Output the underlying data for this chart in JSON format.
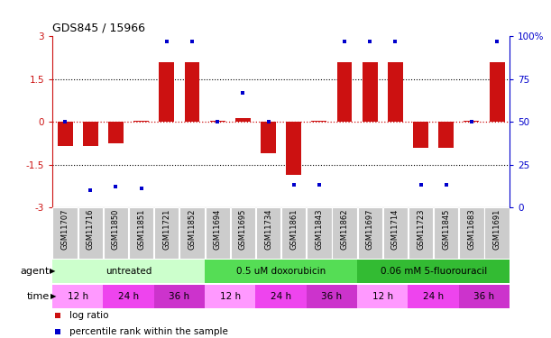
{
  "title": "GDS845 / 15966",
  "samples": [
    "GSM11707",
    "GSM11716",
    "GSM11850",
    "GSM11851",
    "GSM11721",
    "GSM11852",
    "GSM11694",
    "GSM11695",
    "GSM11734",
    "GSM11861",
    "GSM11843",
    "GSM11862",
    "GSM11697",
    "GSM11714",
    "GSM11723",
    "GSM11845",
    "GSM11683",
    "GSM11691"
  ],
  "log_ratios": [
    -0.85,
    -0.85,
    -0.75,
    0.02,
    2.1,
    2.1,
    0.02,
    0.12,
    -1.1,
    -1.85,
    0.02,
    2.1,
    2.1,
    2.1,
    -0.9,
    -0.9,
    0.02,
    2.1
  ],
  "percentile_ranks": [
    50,
    10,
    12,
    11,
    97,
    97,
    50,
    67,
    50,
    13,
    13,
    97,
    97,
    97,
    13,
    13,
    50,
    97
  ],
  "bar_color": "#cc1111",
  "dot_color": "#0000cc",
  "ylim_left": [
    -3.0,
    3.0
  ],
  "ylim_right": [
    0,
    100
  ],
  "yticks_left": [
    -3.0,
    -1.5,
    0.0,
    1.5,
    3.0
  ],
  "yticks_left_labels": [
    "-3",
    "-1.5",
    "0",
    "1.5",
    "3"
  ],
  "yticks_right": [
    0,
    25,
    50,
    75,
    100
  ],
  "yticks_right_labels": [
    "0",
    "25",
    "50",
    "75",
    "100%"
  ],
  "agent_groups": [
    {
      "label": "untreated",
      "start": 0,
      "end": 6,
      "color": "#ccffcc"
    },
    {
      "label": "0.5 uM doxorubicin",
      "start": 6,
      "end": 12,
      "color": "#55dd55"
    },
    {
      "label": "0.06 mM 5-fluorouracil",
      "start": 12,
      "end": 18,
      "color": "#33bb33"
    }
  ],
  "time_groups": [
    {
      "label": "12 h",
      "start": 0,
      "end": 2,
      "color": "#ff99ff"
    },
    {
      "label": "24 h",
      "start": 2,
      "end": 4,
      "color": "#ee44ee"
    },
    {
      "label": "36 h",
      "start": 4,
      "end": 6,
      "color": "#cc33cc"
    },
    {
      "label": "12 h",
      "start": 6,
      "end": 8,
      "color": "#ff99ff"
    },
    {
      "label": "24 h",
      "start": 8,
      "end": 10,
      "color": "#ee44ee"
    },
    {
      "label": "36 h",
      "start": 10,
      "end": 12,
      "color": "#cc33cc"
    },
    {
      "label": "12 h",
      "start": 12,
      "end": 14,
      "color": "#ff99ff"
    },
    {
      "label": "24 h",
      "start": 14,
      "end": 16,
      "color": "#ee44ee"
    },
    {
      "label": "36 h",
      "start": 16,
      "end": 18,
      "color": "#cc33cc"
    }
  ],
  "legend_bar_label": "log ratio",
  "legend_dot_label": "percentile rank within the sample",
  "xlabel_agent": "agent",
  "xlabel_time": "time",
  "bar_width": 0.6,
  "sample_bg_color": "#cccccc",
  "sample_edge_color": "#ffffff"
}
